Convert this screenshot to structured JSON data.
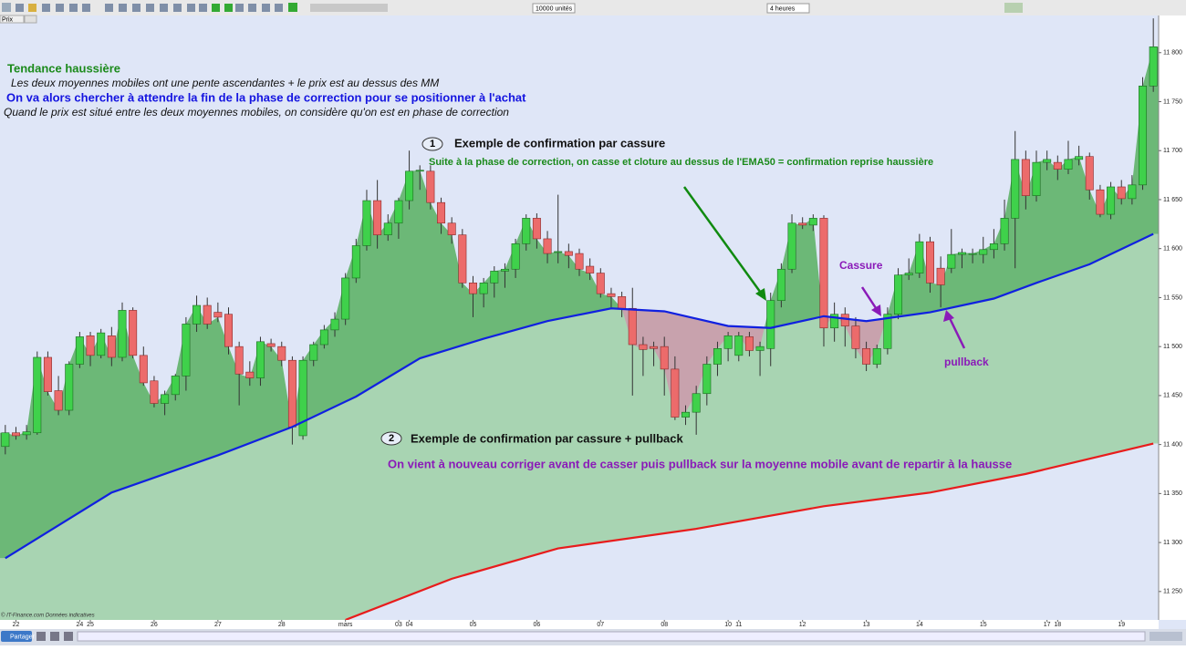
{
  "toolbar": {
    "price_tab": "Prix",
    "units": "10000 unités",
    "period": "4 heures"
  },
  "footer": {
    "share": "Partager",
    "copyright": "© IT-Finance.com Données indicatives"
  },
  "annotations": {
    "trend_title": "Tendance haussière",
    "trend_desc": "Les deux moyennes mobiles ont une pente ascendantes + le prix est au dessus des MM",
    "strategy": "On va alors chercher à attendre la fin de la phase de correction pour se positionner à l'achat",
    "correction": "Quand le prix est situé entre les deux moyennes mobiles, on considère qu'on est en phase de correction",
    "ex1_num": "1",
    "ex1_title": "Exemple de confirmation par cassure",
    "ex1_desc": "Suite à la phase de correction, on casse et cloture au dessus de l'EMA50 = confirmation reprise haussière",
    "cassure": "Cassure",
    "pullback": "pullback",
    "ex2_num": "2",
    "ex2_title": "Exemple de confirmation par cassure + pullback",
    "ex2_desc": "On vient à nouveau corriger avant de casser puis pullback sur la moyenne mobile avant de repartir à la hausse"
  },
  "chart_data": {
    "type": "candlestick",
    "up_color": "#3fd14b",
    "down_color": "#ec6b6b",
    "xlim": [
      -0.5,
      108.5
    ],
    "ylim": [
      11221,
      11837
    ],
    "xticks": [
      {
        "value": 1,
        "label": "22"
      },
      {
        "value": 7,
        "label": "24"
      },
      {
        "value": 8,
        "label": "25"
      },
      {
        "value": 14,
        "label": "26"
      },
      {
        "value": 20,
        "label": "27"
      },
      {
        "value": 26,
        "label": "28"
      },
      {
        "value": 32,
        "label": "mars"
      },
      {
        "value": 37,
        "label": "03"
      },
      {
        "value": 38,
        "label": "04"
      },
      {
        "value": 44,
        "label": "05"
      },
      {
        "value": 50,
        "label": "06"
      },
      {
        "value": 56,
        "label": "07"
      },
      {
        "value": 62,
        "label": "08"
      },
      {
        "value": 68,
        "label": "10"
      },
      {
        "value": 69,
        "label": "11"
      },
      {
        "value": 75,
        "label": "12"
      },
      {
        "value": 81,
        "label": "13"
      },
      {
        "value": 86,
        "label": "14"
      },
      {
        "value": 92,
        "label": "15"
      },
      {
        "value": 98,
        "label": "17"
      },
      {
        "value": 99,
        "label": "18"
      },
      {
        "value": 105,
        "label": "19"
      }
    ],
    "yticks": [
      {
        "value": 11250,
        "label": "11 250"
      },
      {
        "value": 11300,
        "label": "11 300"
      },
      {
        "value": 11350,
        "label": "11 350"
      },
      {
        "value": 11400,
        "label": "11 400"
      },
      {
        "value": 11450,
        "label": "11 450"
      },
      {
        "value": 11500,
        "label": "11 500"
      },
      {
        "value": 11550,
        "label": "11 550"
      },
      {
        "value": 11600,
        "label": "11 600"
      },
      {
        "value": 11650,
        "label": "11 650"
      },
      {
        "value": 11700,
        "label": "11 700"
      },
      {
        "value": 11750,
        "label": "11 750"
      },
      {
        "value": 11800,
        "label": "11 800"
      }
    ],
    "open": [
      11398,
      11412,
      11410,
      11412,
      11489,
      11455,
      11435,
      11482,
      11511,
      11491,
      11511,
      11489,
      11537,
      11491,
      11465,
      11442,
      11451,
      11470,
      11523,
      11542,
      11535,
      11533,
      11500,
      11474,
      11468,
      11503,
      11500,
      11486,
      11409,
      11486,
      11502,
      11517,
      11528,
      11570,
      11603,
      11649,
      11614,
      11626,
      11649,
      11679,
      11679,
      11647,
      11626,
      11614,
      11565,
      11554,
      11565,
      11577,
      11579,
      11605,
      11631,
      11610,
      11596,
      11597,
      11595,
      11582,
      11575,
      11554,
      11551,
      11539,
      11502,
      11500,
      11500,
      11477,
      11428,
      11433,
      11452,
      11482,
      11498,
      11491,
      11510,
      11496,
      11498,
      11547,
      11579,
      11626,
      11624,
      11631,
      11519,
      11533,
      11521,
      11498,
      11482,
      11498,
      11533,
      11573,
      11575,
      11607,
      11580,
      11580,
      11594,
      11594,
      11594,
      11599,
      11605,
      11631,
      11691,
      11654,
      11688,
      11688,
      11681,
      11691,
      11694,
      11660,
      11635,
      11663,
      11651,
      11665,
      11766
    ],
    "high": [
      11420,
      11418,
      11420,
      11495,
      11495,
      11470,
      11485,
      11515,
      11515,
      11518,
      11520,
      11545,
      11540,
      11500,
      11470,
      11455,
      11472,
      11530,
      11552,
      11550,
      11545,
      11540,
      11505,
      11485,
      11510,
      11508,
      11505,
      11490,
      11490,
      11505,
      11522,
      11535,
      11575,
      11610,
      11660,
      11670,
      11635,
      11652,
      11700,
      11685,
      11685,
      11652,
      11632,
      11620,
      11572,
      11570,
      11582,
      11585,
      11610,
      11635,
      11636,
      11618,
      11655,
      11605,
      11600,
      11590,
      11580,
      11560,
      11556,
      11560,
      11510,
      11505,
      11510,
      11490,
      11440,
      11460,
      11490,
      11505,
      11515,
      11515,
      11515,
      11505,
      11555,
      11585,
      11635,
      11632,
      11635,
      11634,
      11545,
      11540,
      11530,
      11505,
      11502,
      11540,
      11580,
      11590,
      11615,
      11612,
      11592,
      11620,
      11600,
      11600,
      11612,
      11620,
      11650,
      11720,
      11700,
      11700,
      11700,
      11695,
      11710,
      11705,
      11698,
      11665,
      11668,
      11670,
      11675,
      11775,
      11835
    ],
    "low": [
      11390,
      11405,
      11405,
      11410,
      11450,
      11430,
      11430,
      11478,
      11480,
      11488,
      11480,
      11485,
      11488,
      11460,
      11438,
      11430,
      11445,
      11455,
      11515,
      11518,
      11525,
      11492,
      11440,
      11460,
      11460,
      11495,
      11480,
      11400,
      11405,
      11480,
      11498,
      11510,
      11522,
      11565,
      11598,
      11600,
      11608,
      11610,
      11640,
      11660,
      11640,
      11615,
      11605,
      11560,
      11530,
      11540,
      11550,
      11560,
      11570,
      11598,
      11600,
      11585,
      11585,
      11580,
      11572,
      11568,
      11550,
      11540,
      11530,
      11450,
      11470,
      11480,
      11450,
      11425,
      11420,
      11410,
      11440,
      11470,
      11485,
      11485,
      11490,
      11470,
      11480,
      11540,
      11575,
      11620,
      11618,
      11500,
      11505,
      11500,
      11488,
      11475,
      11478,
      11492,
      11528,
      11568,
      11570,
      11555,
      11540,
      11575,
      11580,
      11585,
      11585,
      11590,
      11598,
      11580,
      11640,
      11648,
      11680,
      11670,
      11676,
      11685,
      11650,
      11632,
      11630,
      11645,
      11645,
      11660,
      11760
    ],
    "close": [
      11412,
      11409,
      11413,
      11489,
      11454,
      11435,
      11482,
      11510,
      11491,
      11514,
      11489,
      11537,
      11491,
      11463,
      11442,
      11451,
      11470,
      11523,
      11542,
      11523,
      11530,
      11500,
      11472,
      11468,
      11505,
      11500,
      11486,
      11418,
      11486,
      11502,
      11517,
      11528,
      11570,
      11603,
      11649,
      11614,
      11626,
      11649,
      11679,
      11680,
      11647,
      11626,
      11614,
      11565,
      11554,
      11565,
      11577,
      11579,
      11605,
      11631,
      11610,
      11595,
      11597,
      11593,
      11579,
      11575,
      11554,
      11551,
      11539,
      11502,
      11497,
      11498,
      11477,
      11428,
      11433,
      11452,
      11482,
      11498,
      11511,
      11511,
      11496,
      11500,
      11547,
      11579,
      11626,
      11624,
      11631,
      11519,
      11533,
      11521,
      11498,
      11482,
      11498,
      11533,
      11573,
      11575,
      11607,
      11565,
      11563,
      11594,
      11596,
      11595,
      11599,
      11605,
      11631,
      11691,
      11654,
      11688,
      11691,
      11681,
      11691,
      11694,
      11660,
      11635,
      11663,
      11651,
      11665,
      11766,
      11806
    ],
    "series": [
      {
        "name": "EMA50",
        "color": "#1020e0",
        "x": [
          0,
          10,
          20,
          27,
          33,
          39,
          45,
          51,
          57,
          62,
          68,
          72,
          77,
          81,
          87,
          93,
          97,
          102,
          108
        ],
        "values": [
          11284,
          11351,
          11389,
          11418,
          11449,
          11488,
          11508,
          11526,
          11539,
          11536,
          11521,
          11519,
          11531,
          11526,
          11535,
          11549,
          11565,
          11584,
          11615
        ]
      },
      {
        "name": "EMA200",
        "color": "#e81c1c",
        "x": [
          32,
          42,
          52,
          65,
          77,
          87,
          96,
          108
        ],
        "values": [
          11221,
          11263,
          11294,
          11314,
          11337,
          11351,
          11370,
          11401
        ]
      }
    ]
  }
}
